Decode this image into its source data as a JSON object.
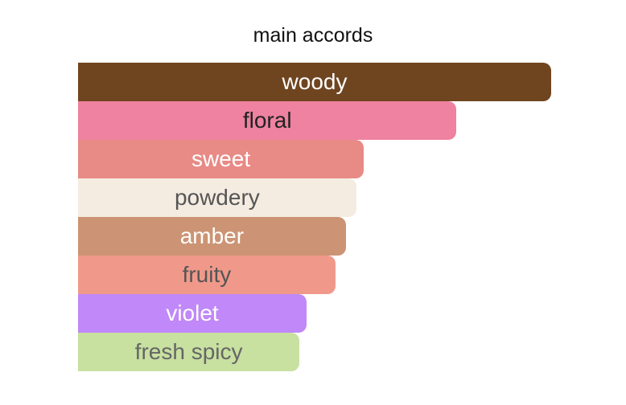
{
  "chart_data": {
    "type": "bar",
    "orientation": "horizontal",
    "title": "main accords",
    "categories": [
      "woody",
      "floral",
      "sweet",
      "powdery",
      "amber",
      "fruity",
      "violet",
      "fresh spicy"
    ],
    "values": [
      100,
      80,
      60.4,
      58.8,
      56.6,
      54.4,
      48.3,
      46.8
    ],
    "xlim": [
      0,
      100
    ],
    "colors": [
      "#6f4520",
      "#ee82a0",
      "#e88a85",
      "#f4ebe1",
      "#cc9474",
      "#f0998a",
      "#c088f8",
      "#c8e0a0"
    ],
    "label_colors": [
      "#ffffff",
      "#222222",
      "#ffffff",
      "#555555",
      "#ffffff",
      "#555555",
      "#ffffff",
      "#666666"
    ],
    "grid": false
  }
}
